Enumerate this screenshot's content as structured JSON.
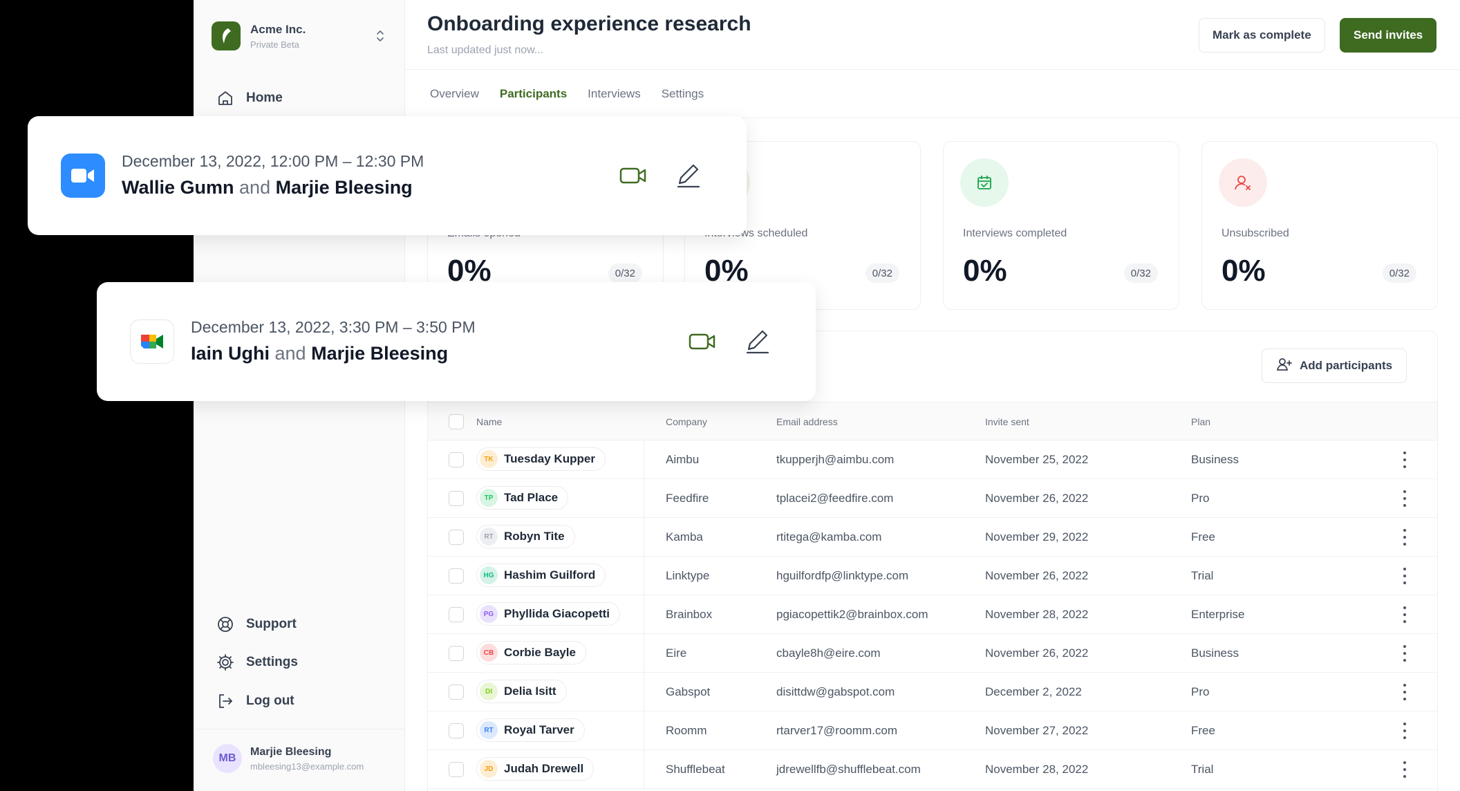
{
  "sidebar": {
    "org": {
      "name": "Acme Inc.",
      "subtitle": "Private Beta"
    },
    "nav": [
      {
        "label": "Home",
        "icon": "home-icon"
      }
    ],
    "bottom_nav": [
      {
        "label": "Support",
        "icon": "lifebuoy-icon"
      },
      {
        "label": "Settings",
        "icon": "gear-icon"
      },
      {
        "label": "Log out",
        "icon": "logout-icon"
      }
    ],
    "user": {
      "initials": "MB",
      "name": "Marjie Bleesing",
      "email": "mbleesing13@example.com"
    }
  },
  "header": {
    "title": "Onboarding experience research",
    "subtitle": "Last updated just now...",
    "mark_complete_label": "Mark as complete",
    "send_invites_label": "Send invites"
  },
  "tabs": [
    {
      "label": "Overview",
      "active": false
    },
    {
      "label": "Participants",
      "active": true
    },
    {
      "label": "Interviews",
      "active": false
    },
    {
      "label": "Settings",
      "active": false
    }
  ],
  "stats": [
    {
      "label": "Emails opened",
      "value": "0%",
      "count": "0/32",
      "icon": "mail-icon"
    },
    {
      "label": "Interviews scheduled",
      "value": "0%",
      "count": "0/32",
      "icon": "calendar-icon"
    },
    {
      "label": "Interviews completed",
      "value": "0%",
      "count": "0/32",
      "icon": "calendar-check-icon"
    },
    {
      "label": "Unsubscribed",
      "value": "0%",
      "count": "0/32",
      "icon": "user-x-icon"
    }
  ],
  "participants": {
    "add_label": "Add participants",
    "columns": [
      "Name",
      "Company",
      "Email address",
      "Invite sent",
      "Plan"
    ],
    "rows": [
      {
        "initials": "TK",
        "name": "Tuesday Kupper",
        "company": "Aimbu",
        "email": "tkupperjh@aimbu.com",
        "invite_sent": "November 25, 2022",
        "plan": "Business",
        "color": "#f59e0b"
      },
      {
        "initials": "TP",
        "name": "Tad Place",
        "company": "Feedfire",
        "email": "tplacei2@feedfire.com",
        "invite_sent": "November 26, 2022",
        "plan": "Pro",
        "color": "#22c55e"
      },
      {
        "initials": "RT",
        "name": "Robyn Tite",
        "company": "Kamba",
        "email": "rtitega@kamba.com",
        "invite_sent": "November 29, 2022",
        "plan": "Free",
        "color": "#9ca3af"
      },
      {
        "initials": "HG",
        "name": "Hashim Guilford",
        "company": "Linktype",
        "email": "hguilfordfp@linktype.com",
        "invite_sent": "November 26, 2022",
        "plan": "Trial",
        "color": "#10b981"
      },
      {
        "initials": "PG",
        "name": "Phyllida Giacopetti",
        "company": "Brainbox",
        "email": "pgiacopettik2@brainbox.com",
        "invite_sent": "November 28, 2022",
        "plan": "Enterprise",
        "color": "#8b5cf6"
      },
      {
        "initials": "CB",
        "name": "Corbie Bayle",
        "company": "Eire",
        "email": "cbayle8h@eire.com",
        "invite_sent": "November 26, 2022",
        "plan": "Business",
        "color": "#ef4444"
      },
      {
        "initials": "DI",
        "name": "Delia Isitt",
        "company": "Gabspot",
        "email": "disittdw@gabspot.com",
        "invite_sent": "December 2, 2022",
        "plan": "Pro",
        "color": "#84cc16"
      },
      {
        "initials": "RT",
        "name": "Royal Tarver",
        "company": "Roomm",
        "email": "rtarver17@roomm.com",
        "invite_sent": "November 27, 2022",
        "plan": "Free",
        "color": "#3b82f6"
      },
      {
        "initials": "JD",
        "name": "Judah Drewell",
        "company": "Shufflebeat",
        "email": "jdrewellfb@shufflebeat.com",
        "invite_sent": "November 28, 2022",
        "plan": "Trial",
        "color": "#f59e0b"
      }
    ]
  },
  "events": [
    {
      "app": "zoom-icon",
      "time": "December 13, 2022, 12:00 PM – 12:30 PM",
      "person1": "Wallie Gumn",
      "joiner": "and",
      "person2": "Marjie Bleesing"
    },
    {
      "app": "google-meet-icon",
      "time": "December 13, 2022, 3:30 PM – 3:50 PM",
      "person1": "Iain Ughi",
      "joiner": "and",
      "person2": "Marjie Bleesing"
    }
  ],
  "colors": {
    "brand": "#3f6b21",
    "zoom": "#2d8cff"
  }
}
